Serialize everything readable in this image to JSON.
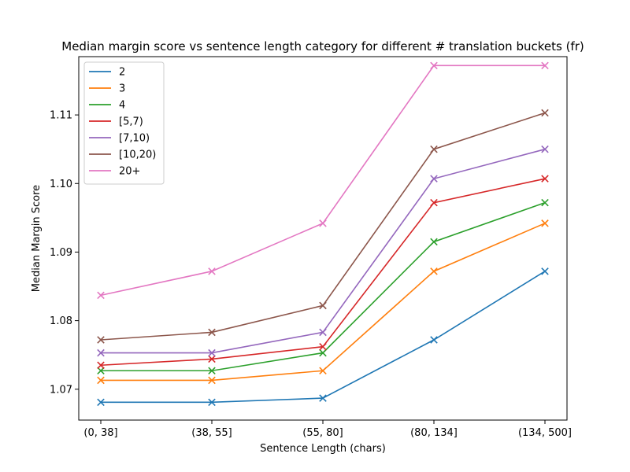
{
  "chart_data": {
    "type": "line",
    "title": "Median margin score vs sentence length category for different # translation buckets (fr)",
    "xlabel": "Sentence Length (chars)",
    "ylabel": "Median Margin Score",
    "categories": [
      "(0, 38]",
      "(38, 55]",
      "(55, 80]",
      "(80, 134]",
      "(134, 500]"
    ],
    "ylim": [
      1.0655,
      1.1185
    ],
    "yticks": [
      1.07,
      1.08,
      1.09,
      1.1,
      1.11
    ],
    "ytick_labels": [
      "1.07",
      "1.08",
      "1.09",
      "1.10",
      "1.11"
    ],
    "grid": false,
    "legend": "top-left",
    "marker": "x",
    "series": [
      {
        "name": "2",
        "color": "#1f77b4",
        "values": [
          1.0681,
          1.0681,
          1.0687,
          1.0772,
          1.0872
        ]
      },
      {
        "name": "3",
        "color": "#ff7f0e",
        "values": [
          1.0713,
          1.0713,
          1.0727,
          1.0872,
          1.0942
        ]
      },
      {
        "name": "4",
        "color": "#2ca02c",
        "values": [
          1.0727,
          1.0727,
          1.0753,
          1.0915,
          1.0972
        ]
      },
      {
        "name": "[5,7)",
        "color": "#d62728",
        "values": [
          1.0735,
          1.0744,
          1.0762,
          1.0972,
          1.1007
        ]
      },
      {
        "name": "[7,10)",
        "color": "#9467bd",
        "values": [
          1.0753,
          1.0753,
          1.0783,
          1.1007,
          1.105
        ]
      },
      {
        "name": "[10,20)",
        "color": "#8c564b",
        "values": [
          1.0772,
          1.0783,
          1.0822,
          1.105,
          1.1103
        ]
      },
      {
        "name": "20+",
        "color": "#e377c2",
        "values": [
          1.0837,
          1.0872,
          1.0942,
          1.1172,
          1.1172
        ]
      }
    ]
  }
}
